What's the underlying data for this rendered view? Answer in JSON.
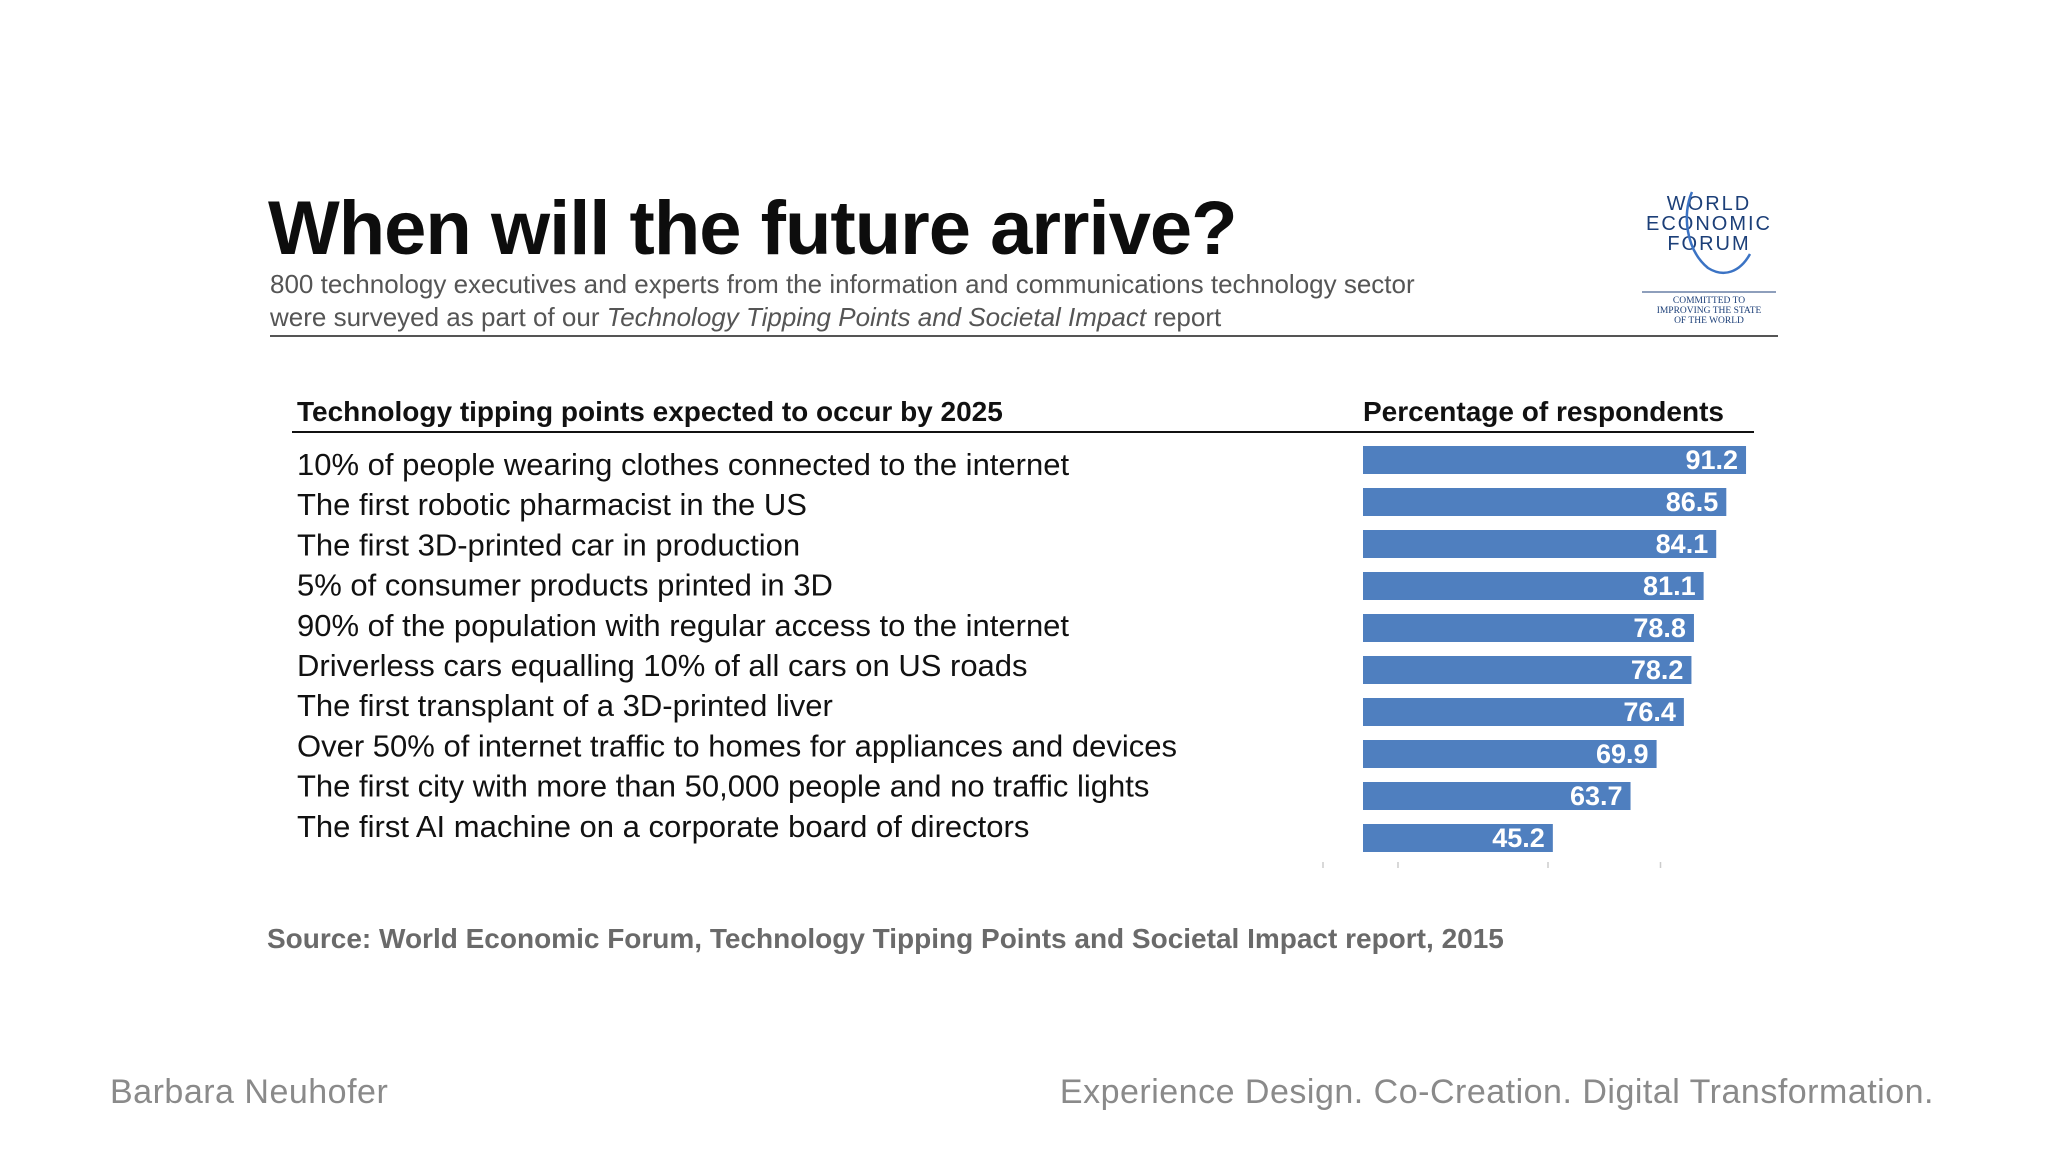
{
  "slide": {
    "title": "When will the future arrive?",
    "subtitle_line1": "800 technology executives and experts from the information and communications technology sector",
    "subtitle_line2_prefix": "were surveyed as part of our ",
    "subtitle_line2_italic": "Technology Tipping Points and Societal Impact",
    "subtitle_line2_suffix": " report",
    "source": "Source: World Economic Forum, Technology Tipping Points and Societal Impact report, 2015"
  },
  "logo": {
    "line1": "WORLD",
    "line2": "ECONOMIC",
    "line3": "FORUM",
    "tag1": "COMMITTED TO",
    "tag2": "IMPROVING THE STATE",
    "tag3": "OF THE WORLD",
    "color": "#1c3f78"
  },
  "footer": {
    "name": "Barbara Neuhofer",
    "tagline": "Experience Design. Co-Creation. Digital Transformation."
  },
  "chart_data": {
    "type": "bar",
    "orientation": "horizontal",
    "category_header": "Technology tipping points expected to occur by 2025",
    "value_header": "Percentage of respondents",
    "bar_color": "#4f7fbf",
    "xlim": [
      0,
      100
    ],
    "categories": [
      "10% of people wearing clothes connected to the internet",
      "The first robotic pharmacist in the US",
      "The first 3D-printed car in production",
      "5% of consumer products printed in 3D",
      "90% of the population with regular access to the internet",
      "Driverless cars equalling 10% of all cars on US roads",
      "The first transplant of a 3D-printed liver",
      "Over 50% of internet traffic to homes for appliances and devices",
      "The first city with more than 50,000 people and no traffic lights",
      "The first AI machine on a corporate board of directors"
    ],
    "values": [
      91.2,
      86.5,
      84.1,
      81.1,
      78.8,
      78.2,
      76.4,
      69.9,
      63.7,
      45.2
    ],
    "value_labels": [
      "91.2",
      "86.5",
      "84.1",
      "81.1",
      "78.8",
      "78.2",
      "76.4",
      "69.9",
      "63.7",
      "45.2"
    ]
  }
}
